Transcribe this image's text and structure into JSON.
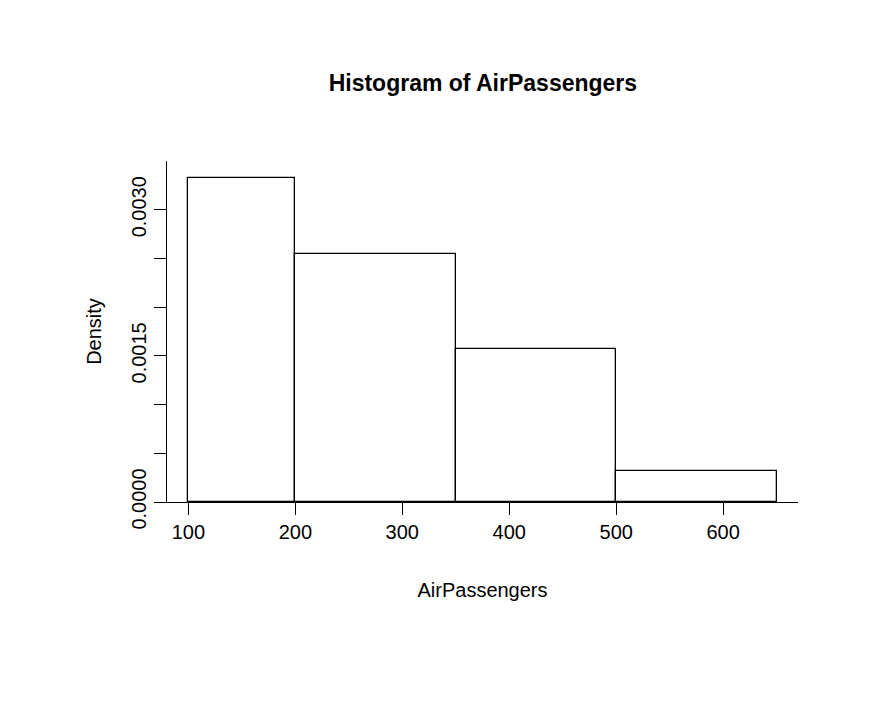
{
  "chart_data": {
    "type": "histogram",
    "title": "Histogram of AirPassengers",
    "x_label": "AirPassengers",
    "y_label": "Density",
    "bins": [
      100,
      200,
      350,
      500,
      650
    ],
    "values": [
      0.00333,
      0.00255,
      0.00157,
      0.00032
    ],
    "color": "#ffffff",
    "xlim": [
      80,
      670
    ],
    "ylim": [
      0,
      0.0035
    ],
    "xticks": [
      100,
      200,
      300,
      400,
      500,
      600
    ],
    "yticks": [
      {
        "value": 0,
        "label": "0.0000"
      },
      {
        "value": 0.0005,
        "label": null
      },
      {
        "value": 0.001,
        "label": null
      },
      {
        "value": 0.0015,
        "label": "0.0015"
      },
      {
        "value": 0.002,
        "label": null
      },
      {
        "value": 0.0025,
        "label": null
      },
      {
        "value": 0.003,
        "label": "0.0030"
      }
    ],
    "grid": false
  }
}
